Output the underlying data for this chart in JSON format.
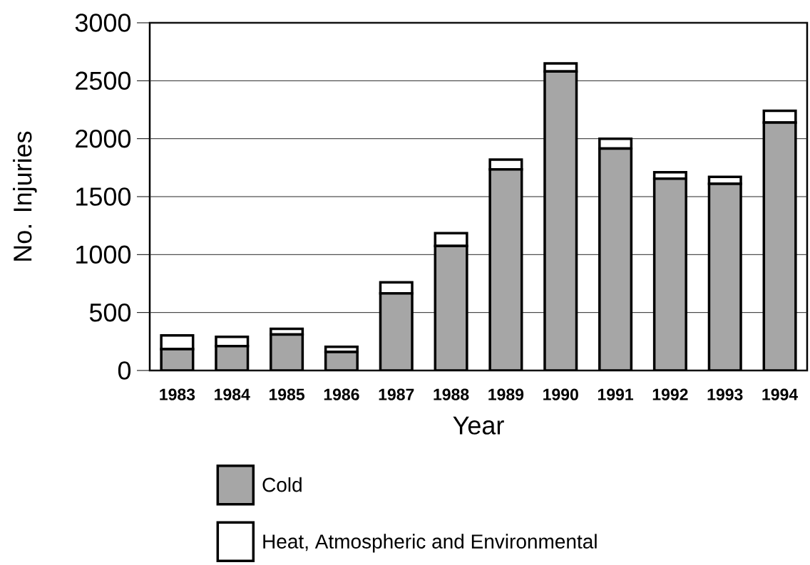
{
  "chart_data": {
    "type": "bar",
    "stacked": true,
    "xlabel": "Year",
    "ylabel": "No. Injuries",
    "categories": [
      "1983",
      "1984",
      "1985",
      "1986",
      "1987",
      "1988",
      "1989",
      "1990",
      "1991",
      "1992",
      "1993",
      "1994"
    ],
    "series": [
      {
        "name": "Cold",
        "color": "#a6a6a6",
        "values": [
          185,
          210,
          310,
          160,
          665,
          1075,
          1735,
          2580,
          1915,
          1655,
          1610,
          2140
        ]
      },
      {
        "name": "Heat, Atmospheric and Environmental",
        "color": "#ffffff",
        "values": [
          118,
          80,
          50,
          45,
          95,
          110,
          85,
          70,
          85,
          55,
          60,
          100
        ]
      }
    ],
    "ylim": [
      0,
      3000
    ],
    "yticks": [
      0,
      500,
      1000,
      1500,
      2000,
      2500,
      3000
    ],
    "grid": "y",
    "legend": "bottom"
  }
}
